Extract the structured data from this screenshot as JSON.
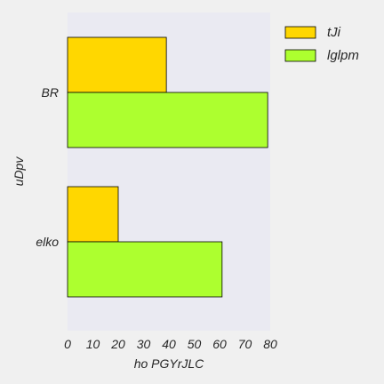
{
  "chart_data": {
    "type": "bar",
    "orientation": "horizontal",
    "categories": [
      "BR",
      "elko"
    ],
    "series": [
      {
        "name": "tJi",
        "values": [
          39,
          20
        ],
        "color": "#ffd700"
      },
      {
        "name": "lglpm",
        "values": [
          79,
          61
        ],
        "color": "#adff2f"
      }
    ],
    "xlabel": "ho PGYrJLC",
    "ylabel": "uDpv",
    "xlim": [
      0,
      80
    ],
    "xticks": [
      0,
      10,
      20,
      30,
      40,
      50,
      60,
      70,
      80
    ],
    "grid": false,
    "legend_position": "top-right",
    "plot_background": "#eaeaf2",
    "figure_background": "#f0f0f0",
    "edge_color": "#000000"
  }
}
